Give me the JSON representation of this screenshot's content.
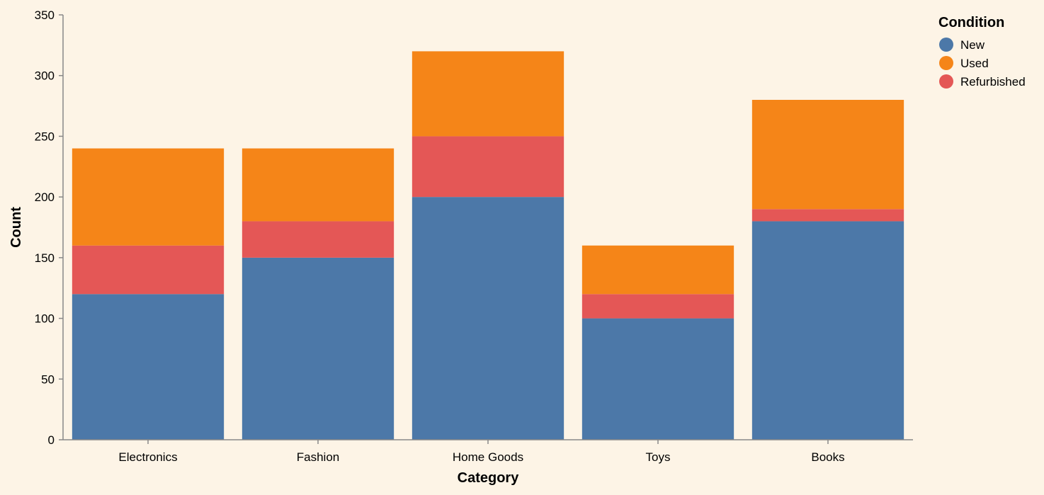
{
  "chart_data": {
    "type": "bar",
    "stacked": true,
    "categories": [
      "Electronics",
      "Fashion",
      "Home Goods",
      "Toys",
      "Books"
    ],
    "series": [
      {
        "name": "New",
        "values": [
          120,
          150,
          200,
          100,
          180
        ],
        "color": "#4c78a8"
      },
      {
        "name": "Refurbished",
        "values": [
          40,
          30,
          50,
          20,
          10
        ],
        "color": "#e45756"
      },
      {
        "name": "Used",
        "values": [
          80,
          60,
          70,
          40,
          90
        ],
        "color": "#f58518"
      }
    ],
    "xlabel": "Category",
    "ylabel": "Count",
    "ylim": [
      0,
      350
    ],
    "yticks": [
      0,
      50,
      100,
      150,
      200,
      250,
      300,
      350
    ],
    "grid": false,
    "legend": {
      "title": "Condition",
      "position": "top-right",
      "entries": [
        {
          "name": "New",
          "color": "#4c78a8"
        },
        {
          "name": "Used",
          "color": "#f58518"
        },
        {
          "name": "Refurbished",
          "color": "#e45756"
        }
      ]
    },
    "background": "#fdf4e6"
  }
}
